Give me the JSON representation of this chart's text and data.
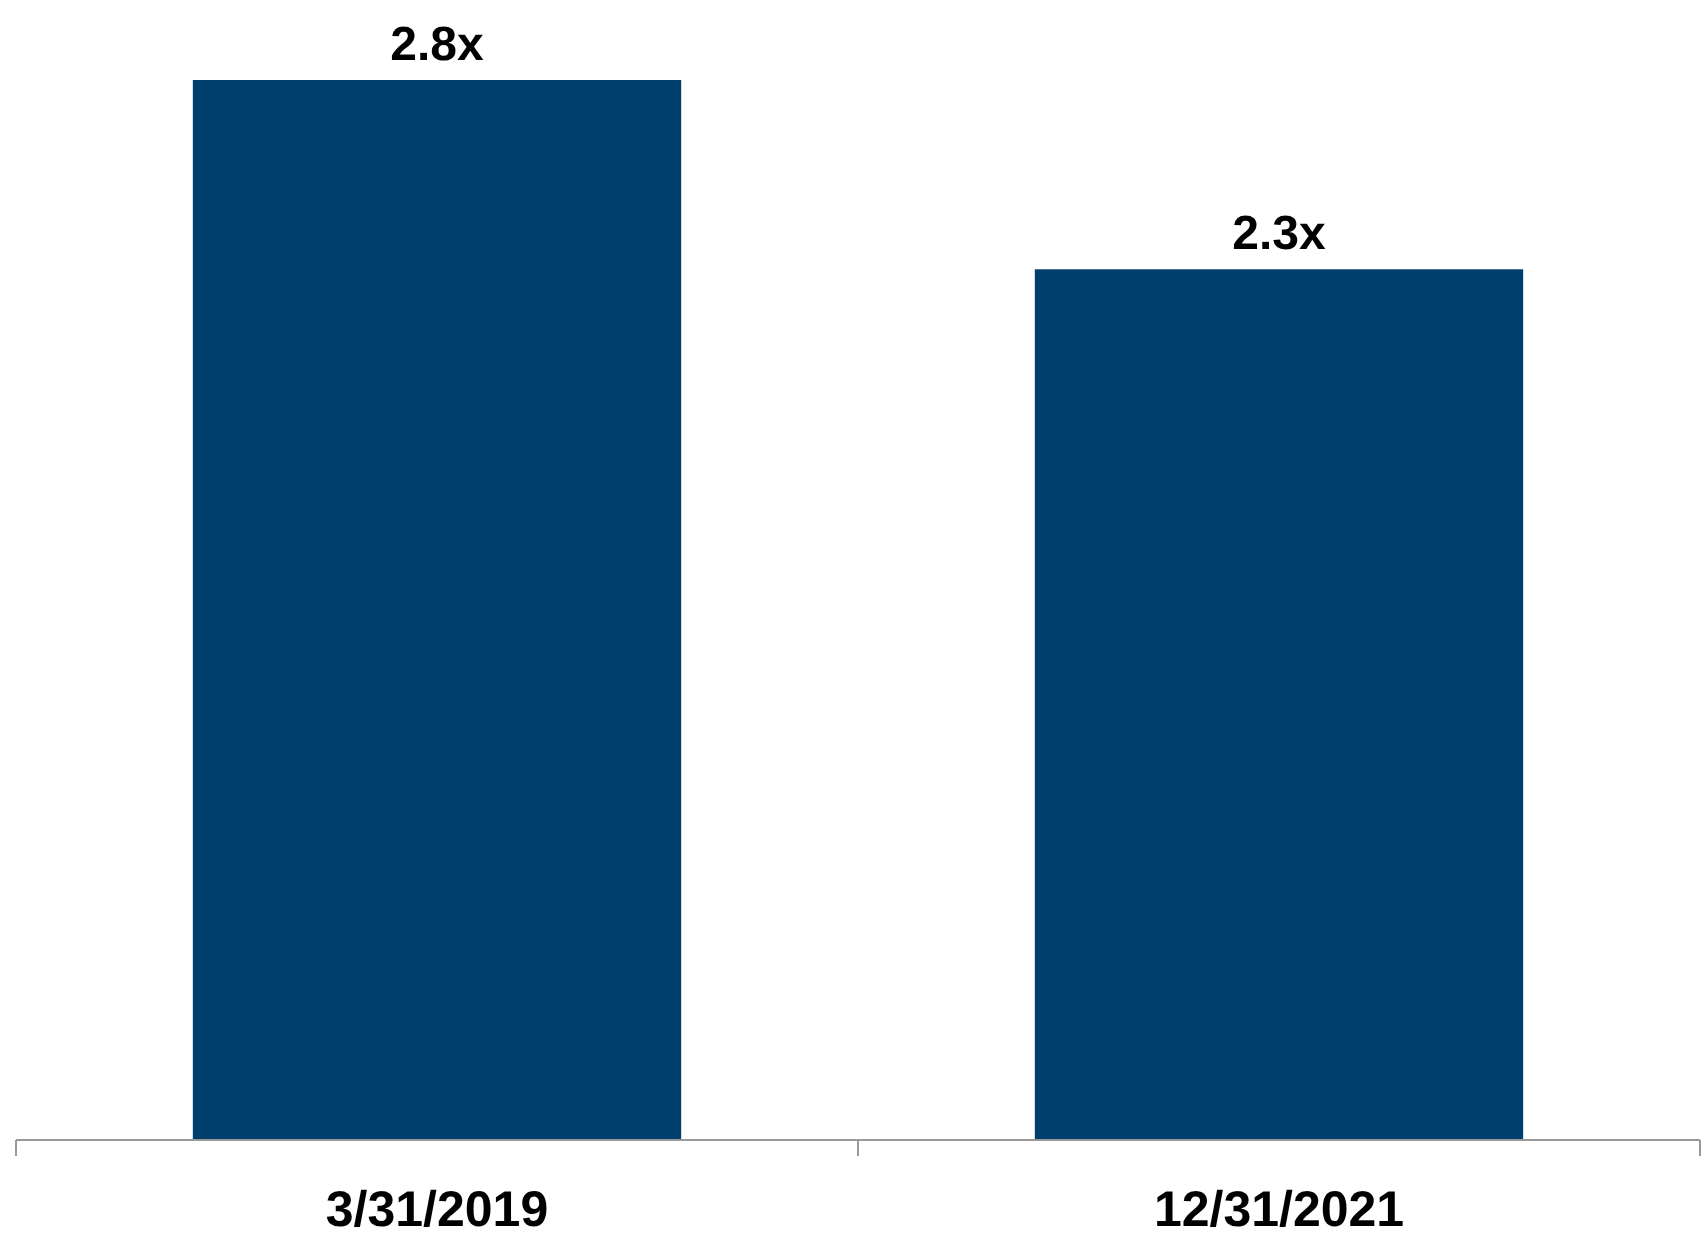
{
  "chart_data": {
    "type": "bar",
    "categories": [
      "3/31/2019",
      "12/31/2021"
    ],
    "values": [
      2.8,
      2.3
    ],
    "value_labels": [
      "2.8x",
      "2.3x"
    ],
    "color": "#003e6e"
  }
}
